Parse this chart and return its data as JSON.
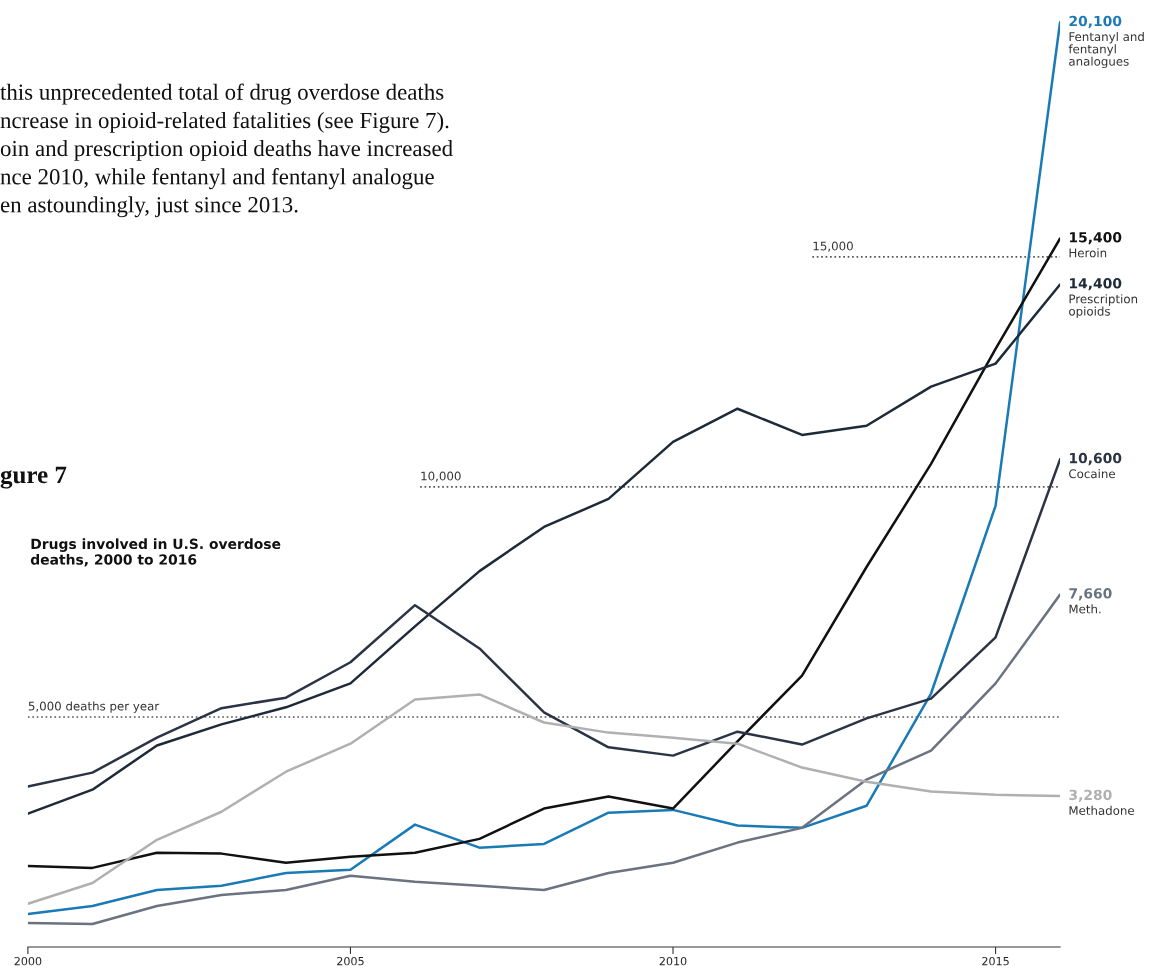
{
  "chart_data": {
    "type": "line",
    "title": "Drugs involved in U.S. overdose\ndeaths, 2000 to 2016",
    "annotations": [
      "this unprecedented total of drug overdose deaths\nncrease in opioid-related fatalities (see Figure 7).\noin and prescription opioid deaths have increased\nnce 2010, while fentanyl and fentanyl analogue\nen astoundingly, just since 2013.",
      "gure 7"
    ],
    "x": [
      2000,
      2001,
      2002,
      2003,
      2004,
      2005,
      2006,
      2007,
      2008,
      2009,
      2010,
      2011,
      2012,
      2013,
      2014,
      2015,
      2016
    ],
    "xlim": [
      2000,
      2016
    ],
    "xticks": [
      2000,
      2005,
      2010,
      2015
    ],
    "tick_labels": "x",
    "grid": false,
    "legend": false,
    "series": [
      {
        "name": "Fentanyl and\nfentanyl\nanalogues",
        "color": "#1a7ab5",
        "values": [
          720,
          890,
          1240,
          1330,
          1610,
          1680,
          2660,
          2160,
          2240,
          2920,
          2980,
          2640,
          2590,
          3070,
          5510,
          9590,
          20100
        ],
        "value_labels": [
          null,
          null,
          null,
          null,
          null,
          null,
          null,
          null,
          null,
          null,
          null,
          null,
          null,
          null,
          null,
          null,
          "20,100"
        ]
      },
      {
        "name": "Heroin",
        "color": "#111111",
        "values": [
          1760,
          1720,
          2050,
          2030,
          1830,
          1960,
          2050,
          2350,
          3010,
          3270,
          3010,
          4470,
          5900,
          8260,
          10500,
          13000,
          15400
        ],
        "value_labels": [
          null,
          null,
          null,
          null,
          null,
          null,
          null,
          null,
          null,
          null,
          null,
          null,
          null,
          null,
          null,
          null,
          "15,400"
        ]
      },
      {
        "name": "Prescription\nopioids",
        "color": "#1e2a38",
        "values": [
          2900,
          3420,
          4380,
          4840,
          5210,
          5730,
          6970,
          8170,
          9130,
          9740,
          10980,
          11700,
          11130,
          11330,
          12180,
          12680,
          14400
        ],
        "value_labels": [
          null,
          null,
          null,
          null,
          null,
          null,
          null,
          null,
          null,
          null,
          null,
          null,
          null,
          null,
          null,
          null,
          "14,400"
        ]
      },
      {
        "name": "Cocaine",
        "color": "#2b3444",
        "values": [
          3490,
          3790,
          4550,
          5190,
          5420,
          6190,
          7430,
          6490,
          5100,
          4340,
          4160,
          4680,
          4400,
          4970,
          5400,
          6730,
          10600
        ],
        "value_labels": [
          null,
          null,
          null,
          null,
          null,
          null,
          null,
          null,
          null,
          null,
          null,
          null,
          null,
          null,
          null,
          null,
          "10,600"
        ]
      },
      {
        "name": "Meth.",
        "color": "#6b7280",
        "values": [
          520,
          500,
          890,
          1130,
          1240,
          1550,
          1420,
          1330,
          1240,
          1610,
          1830,
          2270,
          2590,
          3640,
          4270,
          5730,
          7660
        ],
        "value_labels": [
          null,
          null,
          null,
          null,
          null,
          null,
          null,
          null,
          null,
          null,
          null,
          null,
          null,
          null,
          null,
          null,
          "7,660"
        ]
      },
      {
        "name": "Methadone",
        "color": "#b0b0b0",
        "values": [
          940,
          1390,
          2330,
          2940,
          3810,
          4420,
          5380,
          5490,
          4880,
          4660,
          4550,
          4420,
          3900,
          3590,
          3380,
          3310,
          3280
        ],
        "value_labels": [
          null,
          null,
          null,
          null,
          null,
          null,
          null,
          null,
          null,
          null,
          null,
          null,
          null,
          null,
          null,
          null,
          "3,280"
        ]
      }
    ],
    "ref_lines": [
      {
        "axis": "y",
        "value": 5000,
        "label": "5,000 deaths per year",
        "color": "#555555",
        "line_style": "dotted"
      },
      {
        "axis": "y",
        "value": 10000,
        "label": "10,000",
        "color": "#555555",
        "line_style": "dotted"
      },
      {
        "axis": "y",
        "value": 15000,
        "label": "15,000",
        "color": "#555555",
        "line_style": "dotted"
      }
    ]
  }
}
